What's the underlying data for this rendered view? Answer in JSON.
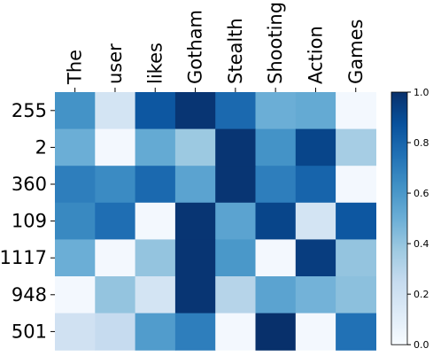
{
  "chart_data": {
    "type": "heatmap",
    "title": "",
    "xlabel": "",
    "ylabel": "",
    "x_categories": [
      "The",
      "user",
      "likes",
      "Gotham",
      "Stealth",
      "Shooting",
      "Action",
      "Games"
    ],
    "y_categories": [
      "255",
      "2",
      "360",
      "109",
      "1117",
      "948",
      "501"
    ],
    "values": [
      [
        0.62,
        0.18,
        0.85,
        0.98,
        0.78,
        0.5,
        0.52,
        0.02
      ],
      [
        0.5,
        0.02,
        0.52,
        0.38,
        0.98,
        0.62,
        0.92,
        0.35
      ],
      [
        0.7,
        0.65,
        0.78,
        0.55,
        0.98,
        0.7,
        0.8,
        0.02
      ],
      [
        0.66,
        0.76,
        0.02,
        0.98,
        0.55,
        0.92,
        0.18,
        0.85
      ],
      [
        0.5,
        0.02,
        0.4,
        0.98,
        0.6,
        0.02,
        0.95,
        0.4
      ],
      [
        0.02,
        0.4,
        0.18,
        0.98,
        0.3,
        0.55,
        0.48,
        0.42
      ],
      [
        0.2,
        0.25,
        0.58,
        0.7,
        0.02,
        1.0,
        0.02,
        0.75
      ]
    ],
    "colorbar": {
      "min": 0.0,
      "max": 1.0,
      "ticks": [
        "0.0",
        "0.2",
        "0.4",
        "0.6",
        "0.8",
        "1.0"
      ],
      "colormap": "Blues"
    }
  }
}
